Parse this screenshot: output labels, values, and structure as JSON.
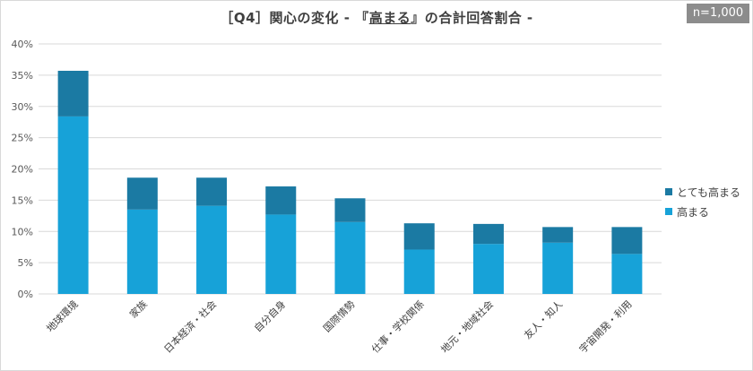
{
  "title": {
    "prefix": "［Q4］関心の変化 - 『",
    "highlight": "高まる",
    "suffix": "』の合計回答割合 -"
  },
  "sample_badge": "n=1,000",
  "colors": {
    "series_top": "#1b7aa3",
    "series_bottom": "#17a2d8",
    "grid": "#d9d9d9"
  },
  "chart_data": {
    "type": "bar",
    "stacked": true,
    "categories": [
      "地球環境",
      "家族",
      "日本経済・社会",
      "自分自身",
      "国際情勢",
      "仕事・学校関係",
      "地元・地域社会",
      "友人・知人",
      "宇宙開発・利用"
    ],
    "series": [
      {
        "name": "高まる",
        "values": [
          28.4,
          13.5,
          14.1,
          12.7,
          11.5,
          7.1,
          8.0,
          8.2,
          6.4
        ]
      },
      {
        "name": "とても高まる",
        "values": [
          7.3,
          5.1,
          4.5,
          4.5,
          3.8,
          4.2,
          3.2,
          2.5,
          4.3
        ]
      }
    ],
    "yticks": [
      "0%",
      "5%",
      "10%",
      "15%",
      "20%",
      "25%",
      "30%",
      "35%",
      "40%"
    ],
    "ylim": [
      0,
      40
    ],
    "grid": true,
    "legend": {
      "position": "right",
      "items": [
        "とても高まる",
        "高まる"
      ]
    }
  }
}
